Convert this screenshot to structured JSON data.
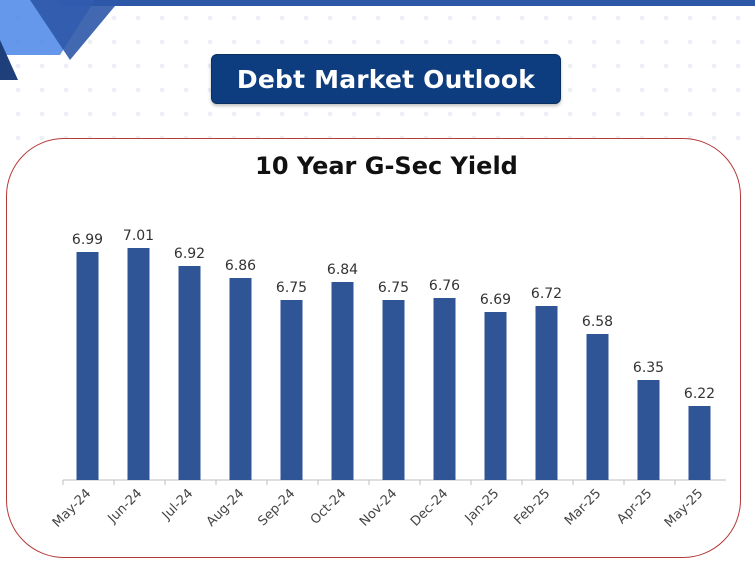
{
  "header": {
    "title": "Debt Market Outlook"
  },
  "colors": {
    "accent": "#0d3d7e",
    "bar": "#2f5597",
    "card_border": "#b33a3a",
    "top_line": "#2d58a8"
  },
  "chart_data": {
    "type": "bar",
    "title": "10 Year G-Sec Yield",
    "xlabel": "",
    "ylabel": "",
    "categories": [
      "May-24",
      "Jun-24",
      "Jul-24",
      "Aug-24",
      "Sep-24",
      "Oct-24",
      "Nov-24",
      "Dec-24",
      "Jan-25",
      "Feb-25",
      "Mar-25",
      "Apr-25",
      "May-25"
    ],
    "values": [
      6.99,
      7.01,
      6.92,
      6.86,
      6.75,
      6.84,
      6.75,
      6.76,
      6.69,
      6.72,
      6.58,
      6.35,
      6.22
    ],
    "value_labels": [
      "6.99",
      "7.01",
      "6.92",
      "6.86",
      "6.75",
      "6.84",
      "6.75",
      "6.76",
      "6.69",
      "6.72",
      "6.58",
      "6.35",
      "6.22"
    ],
    "ylim": [
      5.85,
      7.1
    ],
    "grid": false,
    "legend": "none",
    "data_labels": true
  }
}
